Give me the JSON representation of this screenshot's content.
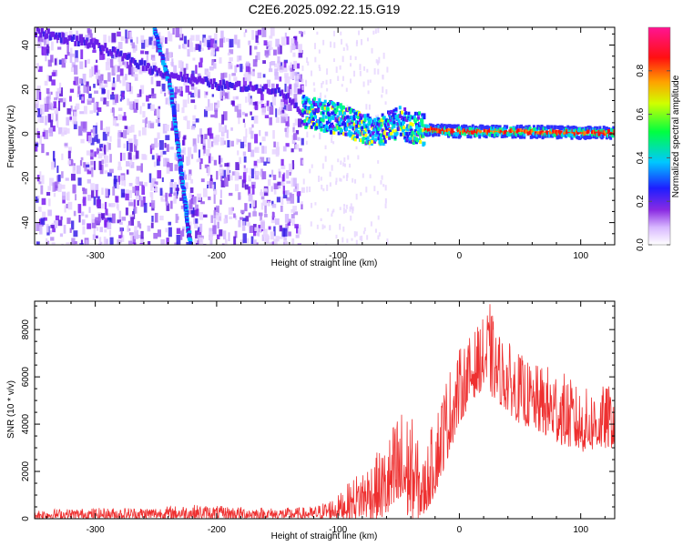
{
  "figure": {
    "title": "C2E6.2025.092.22.15.G19"
  },
  "chart_data": [
    {
      "type": "heatmap",
      "xlabel": "Height of straight line (km)",
      "ylabel": "Frequency (Hz)",
      "xlim": [
        -350,
        128
      ],
      "ylim": [
        -50,
        48
      ],
      "x_ticks": [
        -300,
        -200,
        -100,
        0,
        100
      ],
      "y_ticks": [
        -40,
        -20,
        0,
        20,
        40
      ],
      "colorbar": {
        "label": "Normalized spectral amplitude",
        "range": [
          0,
          1
        ],
        "ticks": [
          0.0,
          0.2,
          0.4,
          0.6,
          0.8
        ],
        "colormap": [
          "#ffffff",
          "#d8b8ff",
          "#7a1cf0",
          "#3030ff",
          "#00c8ff",
          "#00ff80",
          "#ffff00",
          "#ff8000",
          "#ff0000",
          "#ff0080"
        ]
      },
      "features": {
        "noise_region_x": [
          -350,
          -130
        ],
        "steep_track": {
          "x": [
            -252,
            -238,
            -222
          ],
          "y": [
            48,
            20,
            -50
          ]
        },
        "faint_track": {
          "x": [
            -350,
            -300,
            -250,
            -200,
            -150,
            -130
          ],
          "y": [
            46,
            40,
            28,
            22,
            20,
            10
          ]
        },
        "signal_band": {
          "x": [
            -130,
            -110,
            -90,
            -80,
            -70,
            -60,
            -50,
            -40,
            -30,
            0,
            50,
            100,
            128
          ],
          "y": [
            10,
            8,
            5,
            3,
            0,
            3,
            5,
            3,
            2,
            1,
            1,
            0.5,
            0.5
          ]
        }
      }
    },
    {
      "type": "line",
      "xlabel": "Height of straight line (km)",
      "ylabel": "SNR (10 * v/v)",
      "xlim": [
        -350,
        128
      ],
      "ylim": [
        0,
        9200
      ],
      "x_ticks": [
        -300,
        -200,
        -100,
        0,
        100
      ],
      "y_ticks": [
        0,
        2000,
        4000,
        6000,
        8000
      ],
      "series": [
        {
          "color": "#ee3030",
          "envelope": {
            "x": [
              -350,
              -300,
              -250,
              -220,
              -200,
              -150,
              -120,
              -100,
              -80,
              -60,
              -50,
              -40,
              -30,
              -20,
              -10,
              0,
              10,
              20,
              25,
              30,
              40,
              50,
              60,
              80,
              100,
              128
            ],
            "low": [
              0,
              0,
              0,
              0,
              0,
              0,
              0,
              0,
              0,
              0,
              0,
              0,
              0,
              1000,
              2500,
              4000,
              5000,
              5500,
              5200,
              5000,
              4500,
              4000,
              3800,
              3200,
              2800,
              3000
            ],
            "high": [
              400,
              450,
              500,
              600,
              550,
              450,
              500,
              1000,
              2200,
              3200,
              4800,
              4500,
              2500,
              4500,
              6200,
              7200,
              7800,
              8500,
              9200,
              8000,
              7500,
              7000,
              6500,
              6500,
              5500,
              5700
            ]
          }
        }
      ]
    }
  ]
}
